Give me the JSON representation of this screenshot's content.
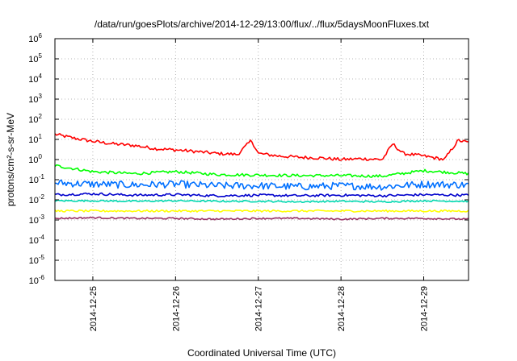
{
  "chart_data": {
    "type": "line",
    "title": "/data/run/goesPlots/archive/2014-12-29/13:00/flux/../flux/5daysMoonFluxes.txt",
    "xlabel": "Coordinated Universal Time (UTC)",
    "ylabel": "protons/cm²-s-sr-MeV",
    "y_scale": "log",
    "ylim": [
      1e-06,
      1000000.0
    ],
    "xlim": [
      "2014-12-24T13:00",
      "2014-12-29T13:00"
    ],
    "grid": true,
    "legend": "none",
    "x_ticks": [
      "2014-12-25",
      "2014-12-26",
      "2014-12-27",
      "2014-12-28",
      "2014-12-29"
    ],
    "y_ticks": [
      {
        "value": 1e-06,
        "base": "10",
        "exp": "-6"
      },
      {
        "value": 1e-05,
        "base": "10",
        "exp": "-5"
      },
      {
        "value": 0.0001,
        "base": "10",
        "exp": "-4"
      },
      {
        "value": 0.001,
        "base": "10",
        "exp": "-3"
      },
      {
        "value": 0.01,
        "base": "10",
        "exp": "-2"
      },
      {
        "value": 0.1,
        "base": "10",
        "exp": "-1"
      },
      {
        "value": 1,
        "base": "10",
        "exp": "0"
      },
      {
        "value": 10,
        "base": "10",
        "exp": "1"
      },
      {
        "value": 100,
        "base": "10",
        "exp": "2"
      },
      {
        "value": 1000,
        "base": "10",
        "exp": "3"
      },
      {
        "value": 10000,
        "base": "10",
        "exp": "4"
      },
      {
        "value": 100000,
        "base": "10",
        "exp": "5"
      },
      {
        "value": 1000000,
        "base": "10",
        "exp": "6"
      }
    ],
    "series": [
      {
        "color": "#ff0000",
        "x": [
          "2014-12-24T13:00",
          "2014-12-24T18:00",
          "2014-12-25T00:00",
          "2014-12-25T06:00",
          "2014-12-25T12:00",
          "2014-12-25T18:00",
          "2014-12-26T00:00",
          "2014-12-26T06:00",
          "2014-12-26T12:00",
          "2014-12-26T18:00",
          "2014-12-26T22:00",
          "2014-12-27T00:00",
          "2014-12-27T06:00",
          "2014-12-27T12:00",
          "2014-12-27T18:00",
          "2014-12-28T00:00",
          "2014-12-28T06:00",
          "2014-12-28T12:00",
          "2014-12-28T15:00",
          "2014-12-28T18:00",
          "2014-12-29T00:00",
          "2014-12-29T06:00",
          "2014-12-29T10:00",
          "2014-12-29T13:00"
        ],
        "y": [
          18,
          12,
          8,
          6,
          5,
          3.5,
          3,
          2.5,
          2,
          1.8,
          9,
          2,
          1.5,
          1.3,
          1.2,
          1.0,
          1.1,
          1.0,
          6,
          2,
          1.5,
          1.0,
          9,
          7
        ]
      },
      {
        "color": "#00ff00",
        "x": [
          "2014-12-24T13:00",
          "2014-12-25T00:00",
          "2014-12-25T12:00",
          "2014-12-26T00:00",
          "2014-12-26T12:00",
          "2014-12-27T00:00",
          "2014-12-27T12:00",
          "2014-12-28T00:00",
          "2014-12-28T12:00",
          "2014-12-29T00:00",
          "2014-12-29T13:00"
        ],
        "y": [
          0.5,
          0.25,
          0.2,
          0.25,
          0.18,
          0.17,
          0.16,
          0.16,
          0.15,
          0.28,
          0.2
        ]
      },
      {
        "color": "#0070ff",
        "x": [
          "2014-12-24T13:00",
          "2014-12-25T00:00",
          "2014-12-25T12:00",
          "2014-12-26T00:00",
          "2014-12-26T12:00",
          "2014-12-27T00:00",
          "2014-12-27T12:00",
          "2014-12-28T00:00",
          "2014-12-28T12:00",
          "2014-12-29T00:00",
          "2014-12-29T13:00"
        ],
        "y": [
          0.07,
          0.06,
          0.055,
          0.06,
          0.05,
          0.05,
          0.045,
          0.05,
          0.045,
          0.06,
          0.055
        ]
      },
      {
        "color": "#0000cc",
        "x": [
          "2014-12-24T13:00",
          "2014-12-25T00:00",
          "2014-12-25T12:00",
          "2014-12-26T00:00",
          "2014-12-26T12:00",
          "2014-12-27T00:00",
          "2014-12-27T12:00",
          "2014-12-28T00:00",
          "2014-12-28T12:00",
          "2014-12-29T00:00",
          "2014-12-29T13:00"
        ],
        "y": [
          0.018,
          0.02,
          0.017,
          0.018,
          0.016,
          0.017,
          0.016,
          0.017,
          0.016,
          0.018,
          0.017
        ]
      },
      {
        "color": "#00d8b0",
        "x": [
          "2014-12-24T13:00",
          "2014-12-25T00:00",
          "2014-12-25T12:00",
          "2014-12-26T00:00",
          "2014-12-26T12:00",
          "2014-12-27T00:00",
          "2014-12-27T12:00",
          "2014-12-28T00:00",
          "2014-12-28T12:00",
          "2014-12-29T00:00",
          "2014-12-29T13:00"
        ],
        "y": [
          0.009,
          0.009,
          0.0085,
          0.009,
          0.0085,
          0.0085,
          0.008,
          0.0085,
          0.008,
          0.009,
          0.0085
        ]
      },
      {
        "color": "#ffff00",
        "x": [
          "2014-12-24T13:00",
          "2014-12-29T13:00"
        ],
        "y": [
          0.0028,
          0.0028
        ]
      },
      {
        "color": "#993366",
        "x": [
          "2014-12-24T13:00",
          "2014-12-25T00:00",
          "2014-12-25T12:00",
          "2014-12-26T00:00",
          "2014-12-26T12:00",
          "2014-12-27T00:00",
          "2014-12-27T12:00",
          "2014-12-28T00:00",
          "2014-12-28T12:00",
          "2014-12-29T00:00",
          "2014-12-29T13:00"
        ],
        "y": [
          0.0012,
          0.0013,
          0.0012,
          0.0012,
          0.0011,
          0.0012,
          0.0012,
          0.0011,
          0.0012,
          0.0012,
          0.0011
        ]
      }
    ]
  }
}
